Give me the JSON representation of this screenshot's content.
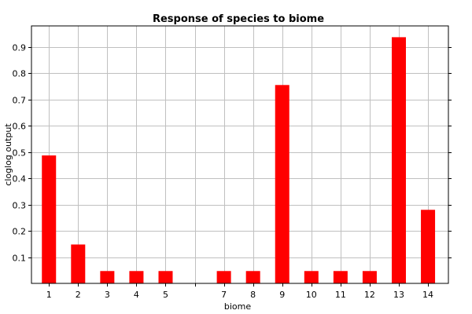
{
  "chart_data": {
    "type": "bar",
    "title": "Response of species to biome",
    "xlabel": "biome",
    "ylabel": "cloglog output",
    "categories": [
      "1",
      "2",
      "3",
      "4",
      "5",
      "7",
      "8",
      "9",
      "10",
      "11",
      "12",
      "13",
      "14"
    ],
    "x": [
      1,
      2,
      3,
      4,
      5,
      7,
      8,
      9,
      10,
      11,
      12,
      13,
      14
    ],
    "values": [
      0.487,
      0.148,
      0.047,
      0.047,
      0.047,
      0.047,
      0.047,
      0.755,
      0.047,
      0.047,
      0.047,
      0.937,
      0.28
    ],
    "xlim": [
      0.4,
      14.7
    ],
    "ylim": [
      0,
      0.98
    ],
    "yticks": [
      0.1,
      0.2,
      0.3,
      0.4,
      0.5,
      0.6,
      0.7,
      0.8,
      0.9
    ],
    "ytick_labels": [
      "0.1",
      "0.2",
      "0.3",
      "0.4",
      "0.5",
      "0.6",
      "0.7",
      "0.8",
      "0.9"
    ],
    "xticks": [
      1,
      2,
      3,
      4,
      5,
      6,
      7,
      8,
      9,
      10,
      11,
      12,
      13,
      14
    ],
    "grid": true,
    "bar_color": "#ff0000"
  }
}
